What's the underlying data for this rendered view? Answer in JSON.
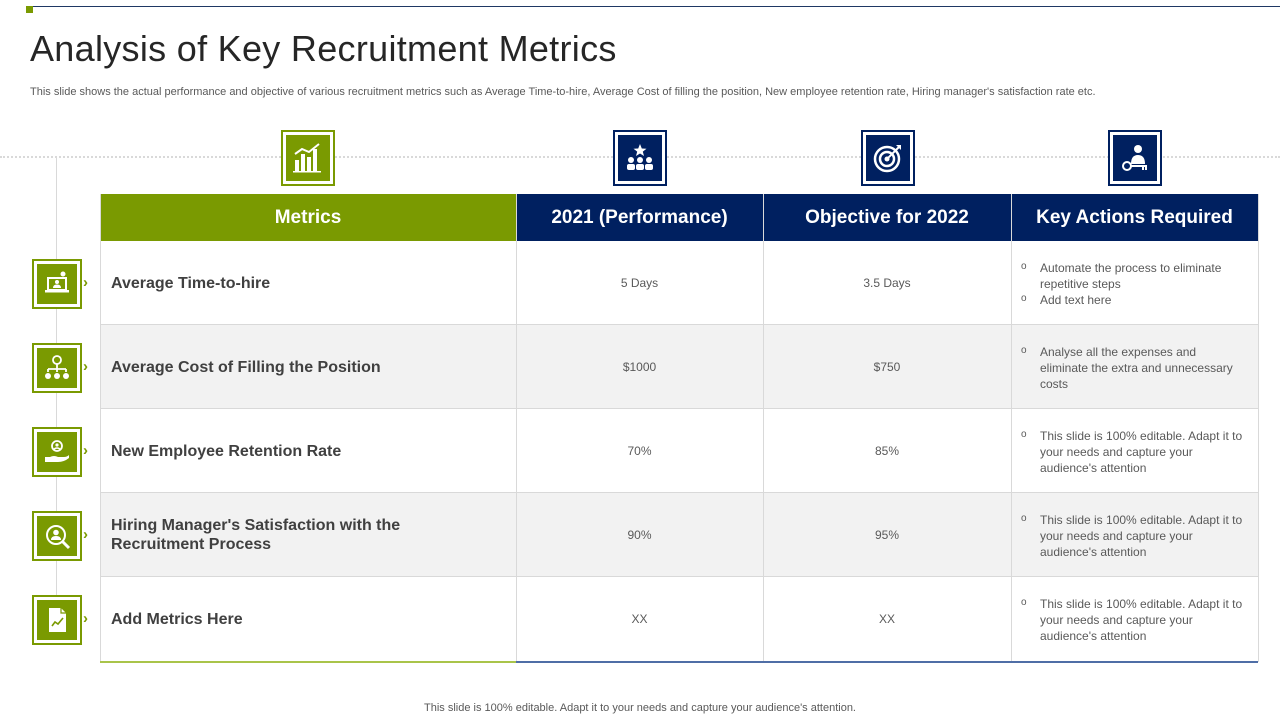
{
  "slide": {
    "title": "Analysis of Key Recruitment Metrics",
    "subtitle": "This slide shows the actual performance and objective of various recruitment metrics such as Average Time-to-hire, Average Cost of filling the position, New employee retention rate, Hiring manager's satisfaction rate etc.",
    "footer": "This slide is 100% editable. Adapt it to your needs and capture your audience's attention."
  },
  "colors": {
    "green": "#7a9a01",
    "navy": "#002060"
  },
  "table": {
    "headers": {
      "metrics": "Metrics",
      "performance": "2021 (Performance)",
      "objective": "Objective for 2022",
      "actions": "Key Actions Required"
    },
    "header_icons": [
      "bar-chart-icon",
      "team-star-icon",
      "target-icon",
      "key-person-icon"
    ],
    "rows": [
      {
        "metric": "Average Time-to-hire",
        "performance": "5 Days",
        "objective": "3.5 Days",
        "actions": [
          "Automate the process to eliminate repetitive steps",
          "Add text here"
        ],
        "icon": "laptop-user-icon"
      },
      {
        "metric": "Average Cost of Filling the Position",
        "performance": "$1000",
        "objective": "$750",
        "actions": [
          "Analyse all the expenses and eliminate the extra and unnecessary costs"
        ],
        "icon": "org-chart-icon"
      },
      {
        "metric": "New Employee Retention Rate",
        "performance": "70%",
        "objective": "85%",
        "actions": [
          "This slide is 100% editable. Adapt it to your needs and capture your audience's attention"
        ],
        "icon": "hand-person-icon"
      },
      {
        "metric": "Hiring Manager's Satisfaction with the Recruitment Process",
        "performance": "90%",
        "objective": "95%",
        "actions": [
          "This slide is 100% editable. Adapt it to your needs and capture your audience's attention"
        ],
        "icon": "user-search-icon"
      },
      {
        "metric": "Add Metrics Here",
        "performance": "XX",
        "objective": "XX",
        "actions": [
          "This slide is 100% editable. Adapt it to your needs and capture your audience's attention"
        ],
        "icon": "document-chart-icon"
      }
    ]
  }
}
